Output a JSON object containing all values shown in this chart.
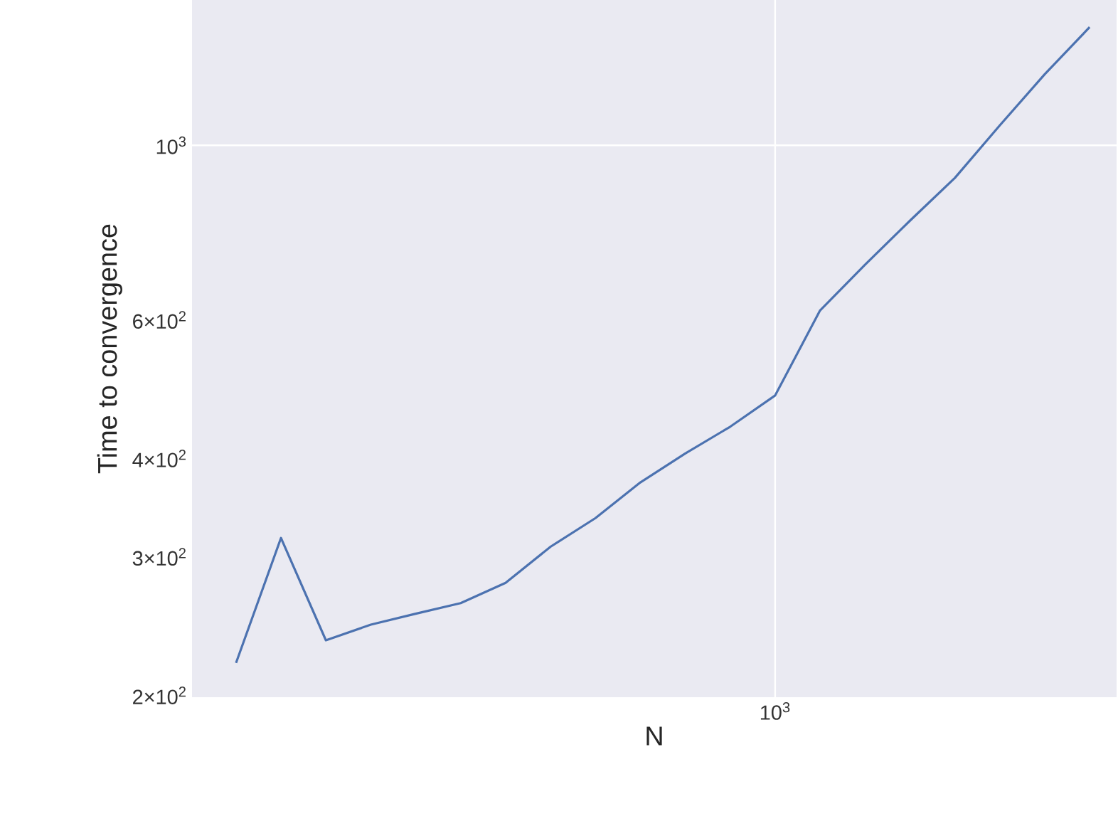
{
  "chart_data": {
    "type": "line",
    "xlabel": "N",
    "ylabel": "Time to convergence",
    "log": "y",
    "grid": true,
    "marker": "none",
    "line_style": "solid",
    "categories": [
      null,
      null,
      null,
      null,
      null,
      null,
      null,
      null,
      null,
      null,
      null,
      null,
      "10$^{3}$",
      null,
      null,
      null,
      null,
      null,
      null,
      null
    ],
    "series": [
      {
        "color": "#4c72b0",
        "values": [
          220,
          317,
          235,
          246,
          254,
          262,
          278,
          309,
          336,
          373,
          406,
          439,
          481,
          617,
          705,
          802,
          909,
          1060,
          1231,
          1413
        ]
      }
    ],
    "ylim": [
      199,
      1530
    ],
    "yticks": [
      {
        "value": 200,
        "label": "2×10$^{2}$"
      },
      {
        "value": 300,
        "label": "3×10$^{2}$"
      },
      {
        "value": 400,
        "label": "4×10$^{2}$"
      },
      {
        "value": 600,
        "label": "6×10$^{2}$"
      },
      {
        "value": 1000,
        "label": "10$^{3}$"
      }
    ]
  }
}
